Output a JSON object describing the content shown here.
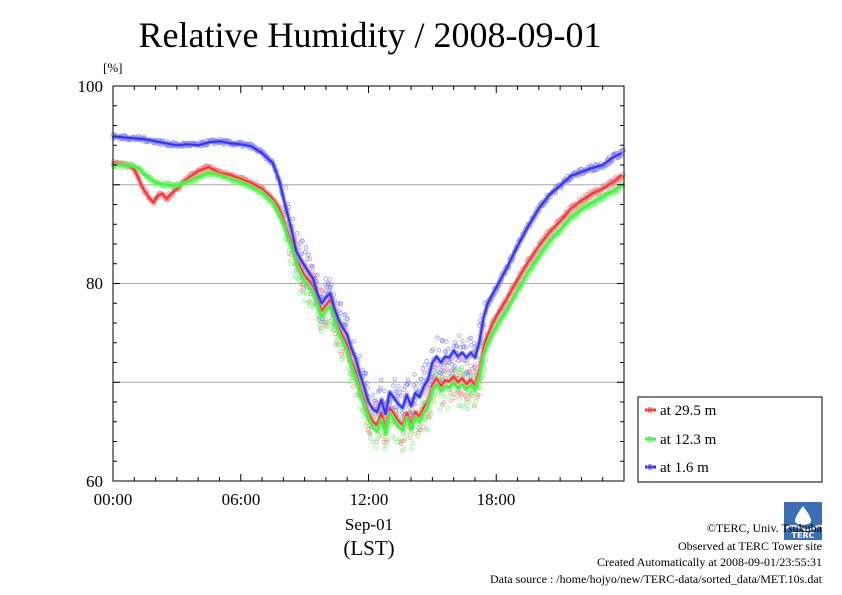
{
  "chart_data": {
    "type": "line",
    "title": "Relative Humidity / 2008-09-01",
    "ylabel": "[%]",
    "xlabel": "(LST)",
    "date_label": "Sep-01",
    "ylim": [
      60,
      100
    ],
    "xlim": [
      "00:00",
      "24:00"
    ],
    "y_ticks": [
      "60",
      "80",
      "100"
    ],
    "x_ticks": [
      "00:00",
      "06:00",
      "12:00",
      "18:00"
    ],
    "grid": "horizontal at 70, 80, 90",
    "legend_position": "right",
    "series": [
      {
        "name": "at 29.5 m",
        "color": "#ff3030",
        "x_hours": [
          0,
          0.5,
          1.0,
          1.3,
          1.5,
          1.7,
          1.9,
          2.1,
          2.3,
          2.5,
          2.7,
          3.0,
          3.3,
          3.6,
          4.0,
          4.5,
          5.0,
          5.5,
          6.0,
          6.5,
          7.0,
          7.5,
          7.8,
          8.0,
          8.2,
          8.4,
          8.6,
          8.8,
          9.0,
          9.2,
          9.4,
          9.6,
          9.8,
          10.0,
          10.2,
          10.4,
          10.6,
          10.8,
          11.0,
          11.2,
          11.4,
          11.6,
          11.8,
          12.0,
          12.2,
          12.4,
          12.6,
          12.8,
          13.0,
          13.2,
          13.4,
          13.6,
          13.8,
          14.0,
          14.2,
          14.4,
          14.6,
          14.8,
          15.0,
          15.2,
          15.4,
          15.6,
          15.8,
          16.0,
          16.2,
          16.4,
          16.6,
          16.8,
          17.0,
          17.2,
          17.4,
          17.6,
          17.8,
          18.0,
          18.5,
          19.0,
          19.5,
          20.0,
          20.5,
          21.0,
          21.5,
          22.0,
          22.5,
          23.0,
          23.5,
          23.9
        ],
        "values": [
          92.2,
          92.1,
          91.6,
          90.1,
          89.3,
          88.7,
          88.2,
          88.9,
          89.1,
          88.6,
          89.0,
          89.6,
          90.3,
          90.8,
          91.4,
          91.8,
          91.2,
          91.0,
          90.6,
          90.2,
          89.6,
          88.6,
          87.6,
          86.5,
          85.2,
          84.0,
          82.5,
          81.6,
          80.8,
          80.3,
          79.8,
          78.4,
          77.2,
          77.8,
          78.4,
          76.8,
          75.5,
          74.6,
          73.7,
          72.1,
          71.0,
          69.4,
          68.2,
          66.8,
          66.0,
          65.7,
          66.9,
          65.3,
          67.4,
          66.8,
          66.1,
          65.7,
          66.9,
          65.8,
          67.0,
          66.5,
          67.5,
          68.0,
          69.8,
          70.4,
          69.6,
          70.2,
          70.1,
          70.6,
          70.0,
          70.4,
          69.8,
          70.3,
          69.7,
          71.2,
          73.5,
          74.8,
          75.8,
          76.7,
          78.5,
          80.4,
          82.2,
          83.8,
          85.2,
          86.3,
          87.6,
          88.4,
          89.1,
          89.6,
          90.3,
          91.0
        ]
      },
      {
        "name": "at 12.3 m",
        "color": "#30ff30",
        "x_hours": [
          0,
          0.5,
          1.0,
          1.3,
          1.5,
          1.7,
          2.0,
          2.5,
          3.0,
          3.5,
          4.0,
          4.5,
          5.0,
          5.5,
          6.0,
          6.5,
          7.0,
          7.5,
          7.8,
          8.0,
          8.2,
          8.4,
          8.6,
          8.8,
          9.0,
          9.2,
          9.4,
          9.6,
          9.8,
          10.0,
          10.2,
          10.4,
          10.6,
          10.8,
          11.0,
          11.2,
          11.4,
          11.6,
          11.8,
          12.0,
          12.2,
          12.4,
          12.6,
          12.8,
          13.0,
          13.2,
          13.4,
          13.6,
          13.8,
          14.0,
          14.2,
          14.4,
          14.6,
          14.8,
          15.0,
          15.2,
          15.4,
          15.6,
          15.8,
          16.0,
          16.2,
          16.4,
          16.6,
          16.8,
          17.0,
          17.2,
          17.4,
          17.6,
          17.8,
          18.0,
          18.5,
          19.0,
          19.5,
          20.0,
          20.5,
          21.0,
          21.5,
          22.0,
          22.5,
          23.0,
          23.5,
          23.9
        ],
        "values": [
          92.0,
          92.0,
          91.9,
          91.5,
          91.0,
          90.7,
          90.2,
          90.0,
          89.9,
          90.3,
          90.8,
          91.2,
          91.0,
          90.6,
          90.3,
          89.8,
          89.2,
          88.2,
          87.0,
          86.0,
          84.6,
          83.5,
          82.0,
          81.0,
          80.2,
          79.6,
          79.0,
          77.7,
          76.6,
          77.3,
          77.7,
          76.2,
          74.9,
          74.0,
          73.0,
          71.5,
          70.3,
          68.9,
          67.6,
          66.2,
          65.4,
          65.0,
          66.2,
          64.7,
          66.9,
          66.2,
          65.5,
          65.1,
          66.4,
          65.2,
          66.5,
          66.0,
          66.9,
          67.5,
          69.2,
          69.8,
          69.1,
          69.6,
          69.5,
          70.0,
          69.4,
          69.8,
          69.3,
          69.7,
          69.2,
          70.4,
          72.7,
          73.9,
          74.9,
          75.7,
          77.4,
          79.3,
          81.2,
          82.8,
          84.3,
          85.4,
          86.7,
          87.5,
          88.2,
          88.8,
          89.4,
          90.0
        ]
      },
      {
        "name": "at 1.6 m",
        "color": "#3030ff",
        "x_hours": [
          0,
          0.5,
          1.0,
          1.5,
          2.0,
          2.5,
          3.0,
          3.5,
          4.0,
          4.5,
          5.0,
          5.5,
          6.0,
          6.5,
          7.0,
          7.5,
          7.8,
          8.0,
          8.2,
          8.4,
          8.6,
          8.8,
          9.0,
          9.2,
          9.4,
          9.6,
          9.8,
          10.0,
          10.2,
          10.4,
          10.6,
          10.8,
          11.0,
          11.2,
          11.4,
          11.6,
          11.8,
          12.0,
          12.2,
          12.4,
          12.6,
          12.8,
          13.0,
          13.2,
          13.4,
          13.6,
          13.8,
          14.0,
          14.2,
          14.4,
          14.6,
          14.8,
          15.0,
          15.2,
          15.4,
          15.6,
          15.8,
          16.0,
          16.2,
          16.4,
          16.6,
          16.8,
          17.0,
          17.2,
          17.4,
          17.6,
          17.8,
          18.0,
          18.5,
          19.0,
          19.5,
          20.0,
          20.5,
          21.0,
          21.5,
          22.0,
          22.5,
          23.0,
          23.5,
          23.9
        ],
        "values": [
          94.9,
          94.8,
          94.7,
          94.6,
          94.4,
          94.2,
          94.0,
          94.1,
          94.0,
          94.3,
          94.4,
          94.2,
          94.1,
          93.9,
          93.2,
          92.2,
          90.5,
          88.7,
          87.0,
          85.3,
          83.3,
          82.5,
          81.8,
          81.1,
          80.5,
          79.0,
          78.0,
          78.6,
          79.0,
          77.5,
          76.3,
          75.5,
          74.8,
          73.4,
          72.4,
          70.8,
          69.5,
          68.0,
          67.3,
          67.0,
          68.2,
          66.8,
          69.0,
          68.4,
          67.8,
          67.4,
          68.7,
          67.6,
          68.9,
          68.5,
          69.6,
          70.3,
          72.0,
          72.6,
          72.0,
          72.6,
          72.5,
          73.2,
          72.6,
          73.0,
          72.5,
          73.0,
          72.5,
          74.0,
          76.5,
          78.0,
          78.8,
          79.6,
          81.6,
          83.8,
          85.8,
          87.6,
          89.0,
          89.9,
          90.9,
          91.3,
          91.7,
          92.0,
          92.8,
          93.2
        ]
      }
    ]
  },
  "credits": {
    "copyright": "©TERC, Univ. Tsukuba",
    "observed": "Observed at TERC Tower site",
    "created": "Created Automatically at 2008-09-01/23:55:31",
    "source": "Data source : /home/hojyo/new/TERC-data/sorted_data/MET.10s.dat",
    "logo_text": "TERC"
  }
}
